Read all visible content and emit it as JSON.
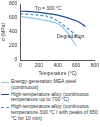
{
  "chart_data": {
    "type": "line",
    "x_label": "Temperature (°C)",
    "y_label": "σ (MPa)",
    "xlim": [
      0,
      800
    ],
    "xticks": [
      0,
      200,
      400,
      600,
      800
    ],
    "ylim": [
      0,
      800
    ],
    "yticks": [
      0,
      200,
      400,
      600,
      800
    ],
    "grid": false,
    "legend": "bottom",
    "series": [
      {
        "name": "Energy-generation MEA steel (continuous)",
        "color": "#8fc8e8",
        "line_style": "solid",
        "x": [
          0,
          200,
          400,
          500,
          600
        ],
        "values": [
          620,
          580,
          520,
          400,
          200
        ]
      },
      {
        "name": "High-temperature alloy (continuous temperature up to 700 °C)",
        "color": "#1f4e8c",
        "line_style": "solid",
        "x": [
          0,
          200,
          400,
          600,
          700
        ],
        "values": [
          700,
          680,
          640,
          560,
          480
        ]
      },
      {
        "name": "High-temperature alloy (continuous temperature 300 °C / with peaks of 650 °C for 10 min)",
        "color": "#4a90c8",
        "line_style": "dashed",
        "x": [
          0,
          200,
          300,
          400,
          650
        ],
        "values": [
          660,
          640,
          620,
          560,
          300
        ]
      }
    ],
    "annotations": [
      {
        "text": "Tp = 300 °C",
        "x": 300,
        "y": 740
      },
      {
        "text": "Degradation",
        "x": 540,
        "y": 330
      }
    ]
  }
}
